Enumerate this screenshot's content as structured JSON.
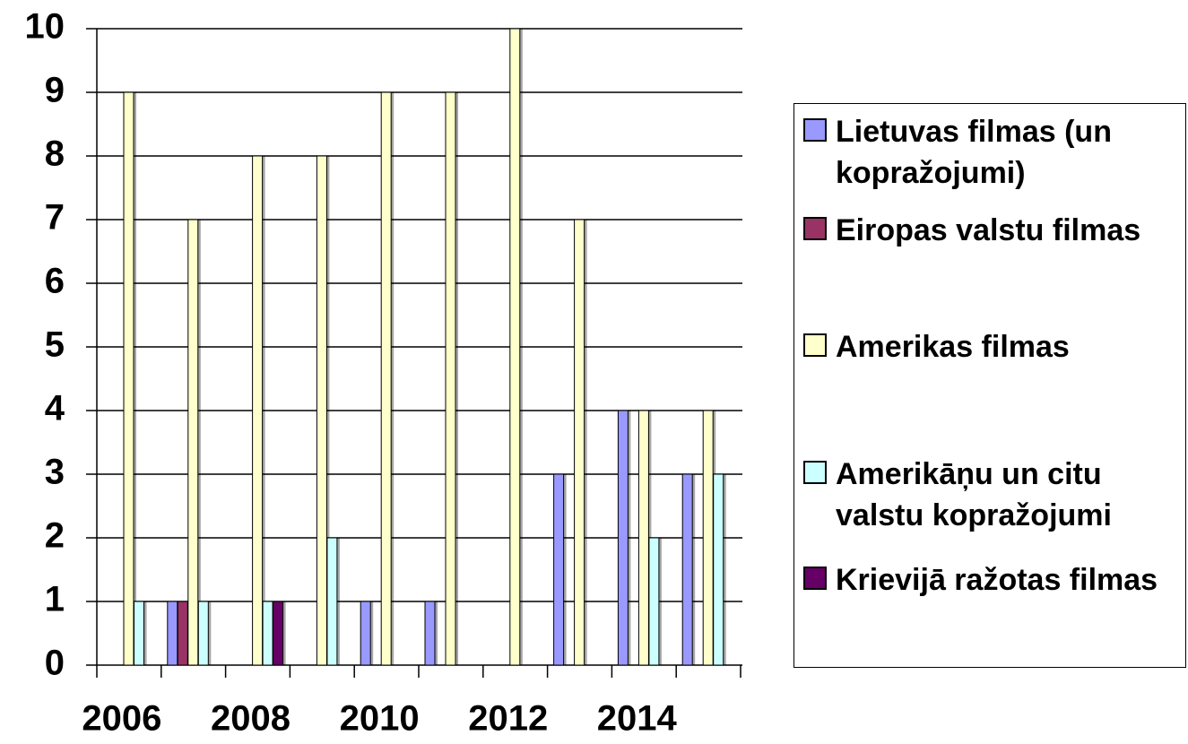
{
  "chart_data": {
    "type": "bar",
    "categories": [
      "2006",
      null,
      "2008",
      null,
      "2010",
      null,
      "2012",
      null,
      "2014",
      null
    ],
    "series": [
      {
        "name": "Lietuvas filmas (un kopražojumi)",
        "color": "#9999ff",
        "values": [
          0,
          1,
          0,
          0,
          1,
          1,
          0,
          3,
          4,
          3
        ]
      },
      {
        "name": "Eiropas valstu filmas",
        "color": "#993366",
        "values": [
          0,
          1,
          0,
          0,
          0,
          0,
          0,
          0,
          0,
          0
        ]
      },
      {
        "name": "Amerikas filmas",
        "color": "#ffffcc",
        "values": [
          9,
          7,
          8,
          8,
          9,
          9,
          10,
          7,
          4,
          4
        ]
      },
      {
        "name": "Amerikāņu un citu valstu kopražojumi",
        "color": "#ccffff",
        "values": [
          1,
          1,
          1,
          2,
          0,
          0,
          0,
          0,
          2,
          3
        ]
      },
      {
        "name": "Krievijā ražotas filmas",
        "color": "#660066",
        "values": [
          0,
          0,
          1,
          0,
          0,
          0,
          0,
          0,
          0,
          0
        ]
      }
    ],
    "ylim": [
      0,
      10
    ],
    "yticks": [
      0,
      1,
      2,
      3,
      4,
      5,
      6,
      7,
      8,
      9,
      10
    ],
    "grid": true,
    "legend": "right"
  }
}
